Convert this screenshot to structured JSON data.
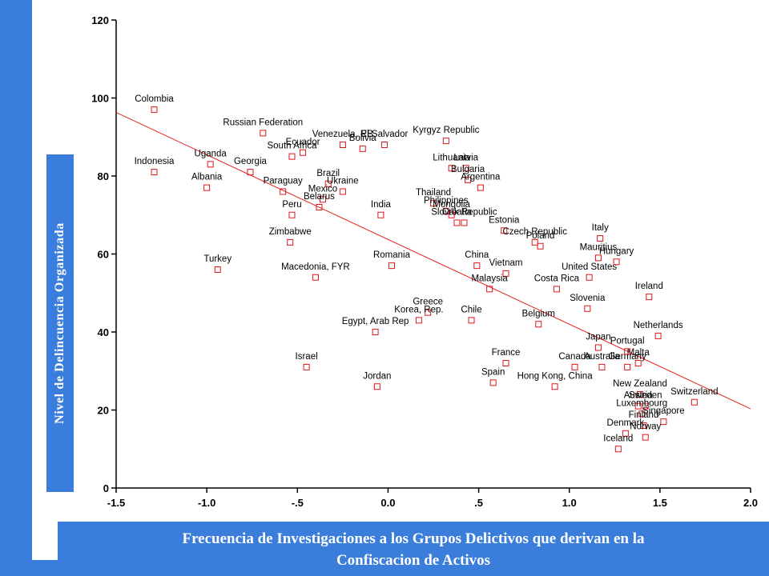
{
  "y_axis_label": "Nivel de Delincuencia Organizada",
  "caption": {
    "line1": "Frecuencia de Investigaciones a los Grupos Delictivos que derivan en la",
    "line2": "Confiscacion de Activos"
  },
  "colors": {
    "accent": "#3a7ddb",
    "marker": "#e0141b",
    "fit_line": "#e8201f"
  },
  "chart_data": {
    "type": "scatter",
    "title": "",
    "xlabel": "Frecuencia de Investigaciones a los Grupos Delictivos que derivan en la Confiscacion de Activos",
    "ylabel": "Nivel de Delincuencia Organizada",
    "xlim": [
      -1.5,
      2.0
    ],
    "ylim": [
      0,
      120
    ],
    "x_ticks": [
      "-1.5",
      "-1.0",
      "-.5",
      "0.0",
      ".5",
      "1.0",
      "1.5",
      "2.0"
    ],
    "y_ticks": [
      "0",
      "20",
      "40",
      "60",
      "80",
      "100",
      "120"
    ],
    "x_tick_values": [
      -1.5,
      -1.0,
      -0.5,
      0.0,
      0.5,
      1.0,
      1.5,
      2.0
    ],
    "y_tick_values": [
      0,
      20,
      40,
      60,
      80,
      100,
      120
    ],
    "grid": false,
    "fit_line": {
      "x": [
        -1.5,
        2.0
      ],
      "y": [
        96.3,
        20.3
      ]
    },
    "points": [
      {
        "label": "Colombia",
        "x": -1.29,
        "y": 97
      },
      {
        "label": "Indonesia",
        "x": -1.29,
        "y": 81
      },
      {
        "label": "Uganda",
        "x": -0.98,
        "y": 83
      },
      {
        "label": "Albania",
        "x": -1.0,
        "y": 77
      },
      {
        "label": "Russian Federation",
        "x": -0.69,
        "y": 91
      },
      {
        "label": "Georgia",
        "x": -0.76,
        "y": 81
      },
      {
        "label": "Turkey",
        "x": -0.94,
        "y": 56
      },
      {
        "label": "Ecuador",
        "x": -0.47,
        "y": 86
      },
      {
        "label": "South Africa",
        "x": -0.53,
        "y": 85
      },
      {
        "label": "Paraguay",
        "x": -0.58,
        "y": 76
      },
      {
        "label": "Peru",
        "x": -0.53,
        "y": 70
      },
      {
        "label": "Zimbabwe",
        "x": -0.54,
        "y": 63
      },
      {
        "label": "Macedonia, FYR",
        "x": -0.4,
        "y": 54
      },
      {
        "label": "Brazil",
        "x": -0.33,
        "y": 78
      },
      {
        "label": "Mexico",
        "x": -0.36,
        "y": 74
      },
      {
        "label": "Belarus",
        "x": -0.38,
        "y": 72
      },
      {
        "label": "Ukraine",
        "x": -0.25,
        "y": 76
      },
      {
        "label": "Venezuela, RB",
        "x": -0.25,
        "y": 88
      },
      {
        "label": "Bolivia",
        "x": -0.14,
        "y": 87
      },
      {
        "label": "El Salvador",
        "x": -0.02,
        "y": 88
      },
      {
        "label": "India",
        "x": -0.04,
        "y": 70
      },
      {
        "label": "Romania",
        "x": 0.02,
        "y": 57
      },
      {
        "label": "Egypt, Arab Rep",
        "x": -0.07,
        "y": 40
      },
      {
        "label": "Israel",
        "x": -0.45,
        "y": 31
      },
      {
        "label": "Jordan",
        "x": -0.06,
        "y": 26
      },
      {
        "label": "Kyrgyz Republic",
        "x": 0.32,
        "y": 89
      },
      {
        "label": "Lithuania",
        "x": 0.35,
        "y": 82
      },
      {
        "label": "Latvia",
        "x": 0.43,
        "y": 82
      },
      {
        "label": "Bulgaria",
        "x": 0.44,
        "y": 79
      },
      {
        "label": "Argentina",
        "x": 0.51,
        "y": 77
      },
      {
        "label": "Thailand",
        "x": 0.25,
        "y": 73
      },
      {
        "label": "Philippines",
        "x": 0.32,
        "y": 71
      },
      {
        "label": "Mongolia",
        "x": 0.35,
        "y": 70
      },
      {
        "label": "Croatia",
        "x": 0.38,
        "y": 68
      },
      {
        "label": "Slovak Republic",
        "x": 0.42,
        "y": 68
      },
      {
        "label": "Estonia",
        "x": 0.64,
        "y": 66
      },
      {
        "label": "Czech Republic",
        "x": 0.81,
        "y": 63
      },
      {
        "label": "Poland",
        "x": 0.84,
        "y": 62
      },
      {
        "label": "China",
        "x": 0.49,
        "y": 57
      },
      {
        "label": "Vietnam",
        "x": 0.65,
        "y": 55
      },
      {
        "label": "Malaysia",
        "x": 0.56,
        "y": 51
      },
      {
        "label": "Greece",
        "x": 0.22,
        "y": 45
      },
      {
        "label": "Korea, Rep.",
        "x": 0.17,
        "y": 43
      },
      {
        "label": "Chile",
        "x": 0.46,
        "y": 43
      },
      {
        "label": "Belgium",
        "x": 0.83,
        "y": 42
      },
      {
        "label": "France",
        "x": 0.65,
        "y": 32
      },
      {
        "label": "Spain",
        "x": 0.58,
        "y": 27
      },
      {
        "label": "Hong Kong, China",
        "x": 0.92,
        "y": 26
      },
      {
        "label": "Costa Rica",
        "x": 0.93,
        "y": 51
      },
      {
        "label": "United States",
        "x": 1.11,
        "y": 54
      },
      {
        "label": "Mauritius",
        "x": 1.16,
        "y": 59
      },
      {
        "label": "Italy",
        "x": 1.17,
        "y": 64
      },
      {
        "label": "Hungary",
        "x": 1.26,
        "y": 58
      },
      {
        "label": "Slovenia",
        "x": 1.1,
        "y": 46
      },
      {
        "label": "Ireland",
        "x": 1.44,
        "y": 49
      },
      {
        "label": "Netherlands",
        "x": 1.49,
        "y": 39
      },
      {
        "label": "Japan",
        "x": 1.16,
        "y": 36
      },
      {
        "label": "Canada",
        "x": 1.03,
        "y": 31
      },
      {
        "label": "Australia",
        "x": 1.18,
        "y": 31
      },
      {
        "label": "Germany",
        "x": 1.32,
        "y": 31
      },
      {
        "label": "Malta",
        "x": 1.38,
        "y": 32
      },
      {
        "label": "Portugal",
        "x": 1.32,
        "y": 35
      },
      {
        "label": "New Zealand",
        "x": 1.39,
        "y": 24
      },
      {
        "label": "Austria",
        "x": 1.38,
        "y": 21
      },
      {
        "label": "Sweden",
        "x": 1.42,
        "y": 21
      },
      {
        "label": "Luxembourg",
        "x": 1.4,
        "y": 19
      },
      {
        "label": "Switzerland",
        "x": 1.69,
        "y": 22
      },
      {
        "label": "Finland",
        "x": 1.41,
        "y": 16
      },
      {
        "label": "Denmark",
        "x": 1.31,
        "y": 14
      },
      {
        "label": "Singapore",
        "x": 1.52,
        "y": 17
      },
      {
        "label": "Norway",
        "x": 1.42,
        "y": 13
      },
      {
        "label": "Iceland",
        "x": 1.27,
        "y": 10
      }
    ]
  }
}
